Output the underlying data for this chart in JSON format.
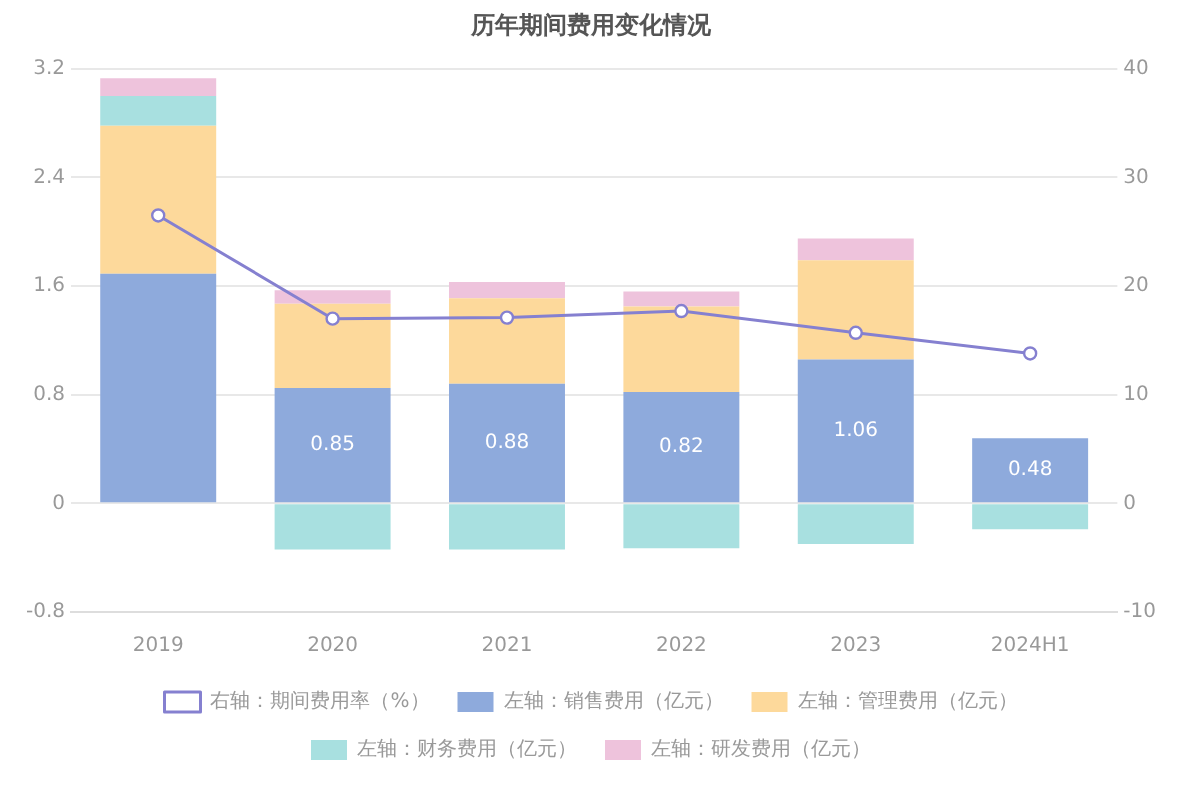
{
  "chart_data": {
    "type": "bar",
    "title": "历年期间费用变化情况",
    "stacked": true,
    "categories": [
      "2019",
      "2020",
      "2021",
      "2022",
      "2023",
      "2024H1"
    ],
    "series": [
      {
        "name": "左轴：销售费用（亿元）",
        "color": "#8eaadc",
        "values": [
          1.69,
          0.85,
          0.88,
          0.82,
          1.06,
          0.48
        ],
        "value_labels": [
          null,
          "0.85",
          "0.88",
          "0.82",
          "1.06",
          "0.48"
        ]
      },
      {
        "name": "左轴：管理费用（亿元）",
        "color": "#fdd99b",
        "values": [
          1.09,
          0.62,
          0.63,
          0.63,
          0.73,
          null
        ]
      },
      {
        "name": "左轴：财务费用（亿元）",
        "color": "#a8e0e0",
        "values": [
          0.22,
          -0.34,
          -0.34,
          -0.33,
          -0.3,
          -0.19
        ]
      },
      {
        "name": "左轴：研发费用（亿元）",
        "color": "#eec3dc",
        "values": [
          0.13,
          0.1,
          0.12,
          0.11,
          0.16,
          null
        ]
      },
      {
        "name": "右轴：期间费用率（%）",
        "type": "line",
        "axis": "y2",
        "color": "#8580d0",
        "values": [
          26.5,
          17.0,
          17.1,
          17.7,
          15.7,
          13.8
        ]
      }
    ],
    "ylim": [
      -0.8,
      3.2
    ],
    "yticks": [
      -0.8,
      0,
      0.8,
      1.6,
      2.4,
      3.2
    ],
    "y2lim": [
      -10,
      40
    ],
    "y2ticks": [
      -10,
      0,
      10,
      20,
      30,
      40
    ],
    "grid": "y",
    "legend": "bottom",
    "marker": "circle"
  }
}
